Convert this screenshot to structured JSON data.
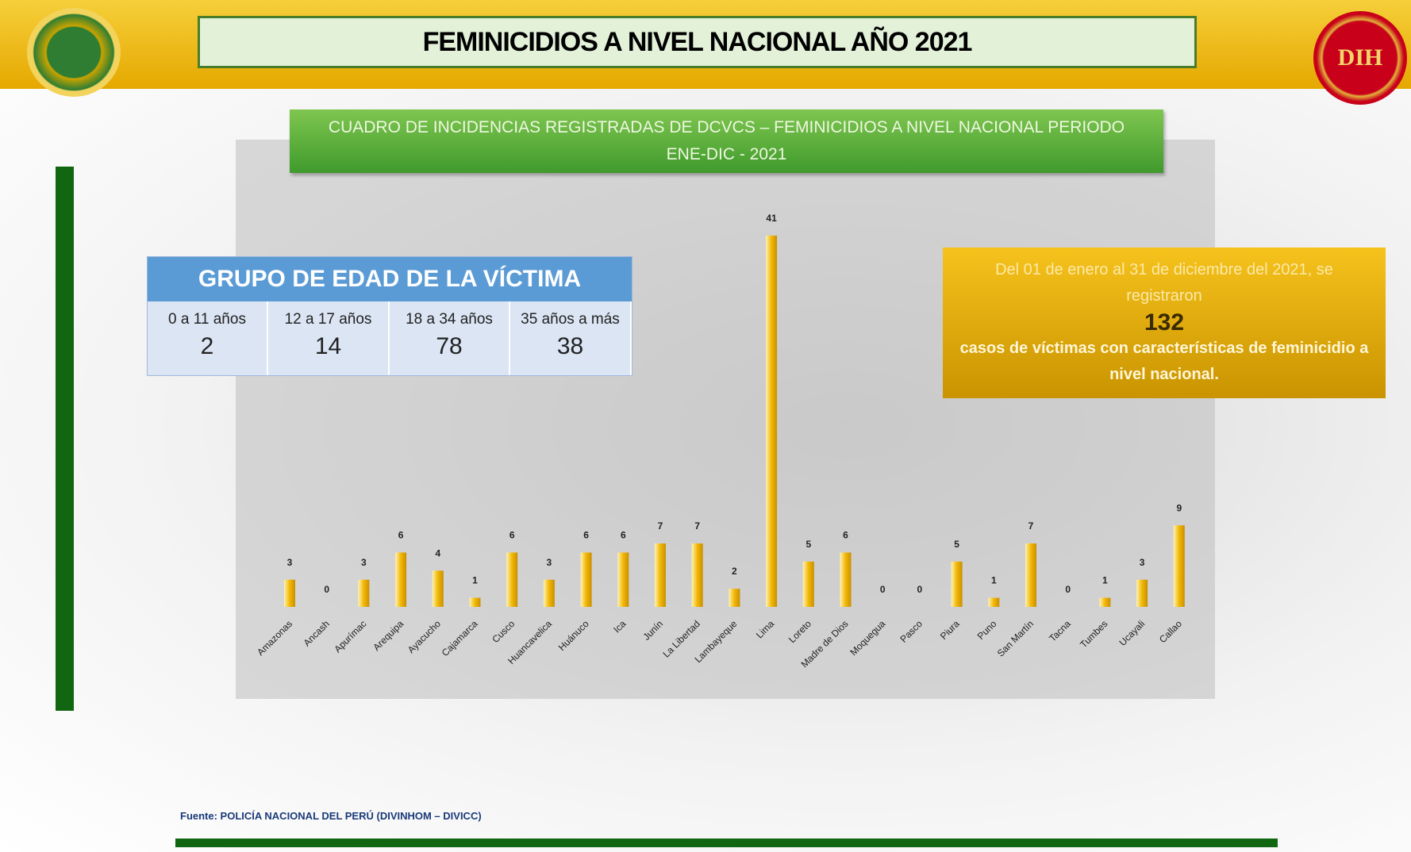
{
  "header": {
    "title": "FEMINICIDIOS A NIVEL NACIONAL AÑO 2021",
    "logo_right": "DIH"
  },
  "age_table": {
    "title": "GRUPO DE EDAD DE LA VÍCTIMA",
    "columns": [
      {
        "label": "0 a 11 años",
        "value": "2"
      },
      {
        "label": "12 a 17 años",
        "value": "14"
      },
      {
        "label": "18 a 34 años",
        "value": "78"
      },
      {
        "label": "35 años a más",
        "value": "38"
      }
    ]
  },
  "callout": {
    "line1": "Del 01 de enero al 31 de diciembre del 2021, se registraron",
    "number": "132",
    "line2": "casos de víctimas con características de feminicidio a nivel nacional."
  },
  "source": "Fuente: POLICÍA NACIONAL DEL PERÚ (DIVINHOM – DIVICC)",
  "chart_data": {
    "type": "bar",
    "title": "CUADRO DE INCIDENCIAS REGISTRADAS DE DCVCS – FEMINICIDIOS A NIVEL NACIONAL PERIODO ENE-DIC - 2021",
    "categories": [
      "Amazonas",
      "Ancash",
      "Apurímac",
      "Arequipa",
      "Ayacucho",
      "Cajamarca",
      "Cusco",
      "Huancavelica",
      "Huánuco",
      "Ica",
      "Junín",
      "La Libertad",
      "Lambayeque",
      "Lima",
      "Loreto",
      "Madre de Dios",
      "Moquegua",
      "Pasco",
      "Piura",
      "Puno",
      "San Martín",
      "Tacna",
      "Tumbes",
      "Ucayali",
      "Callao"
    ],
    "values": [
      3,
      0,
      3,
      6,
      4,
      1,
      6,
      3,
      6,
      6,
      7,
      7,
      2,
      41,
      5,
      6,
      0,
      0,
      5,
      1,
      7,
      0,
      1,
      3,
      9
    ],
    "color": "#f2b705"
  }
}
